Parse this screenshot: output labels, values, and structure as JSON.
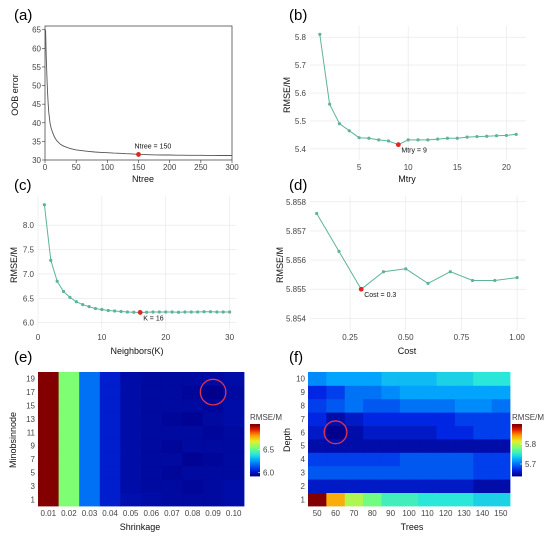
{
  "chart_data": [
    {
      "id": "a",
      "panel_label": "(a)",
      "type": "line",
      "xlabel": "Ntree",
      "ylabel": "OOB error",
      "xlim": [
        0,
        300
      ],
      "ylim": [
        30,
        66
      ],
      "xticks": [
        0,
        50,
        100,
        150,
        200,
        250,
        300
      ],
      "yticks": [
        30,
        35,
        40,
        45,
        50,
        55,
        60,
        65
      ],
      "series": [
        {
          "x": [
            1,
            2,
            3,
            4,
            5,
            6,
            8,
            10,
            12,
            15,
            18,
            20,
            25,
            30,
            35,
            40,
            50,
            60,
            70,
            80,
            90,
            100,
            110,
            120,
            130,
            140,
            150,
            160,
            170,
            180,
            190,
            200,
            210,
            220,
            230,
            240,
            250,
            260,
            270,
            280,
            290,
            300
          ],
          "y": [
            65,
            58,
            52.5,
            48.5,
            45.5,
            43,
            40,
            38.5,
            37.5,
            36.2,
            35.4,
            35,
            34.2,
            33.7,
            33.4,
            33.1,
            32.7,
            32.5,
            32.3,
            32.15,
            32.05,
            31.95,
            31.85,
            31.8,
            31.7,
            31.65,
            31.5,
            31.45,
            31.4,
            31.38,
            31.35,
            31.33,
            31.3,
            31.28,
            31.27,
            31.26,
            31.25,
            31.24,
            31.23,
            31.22,
            31.21,
            31.2
          ]
        }
      ],
      "highlight": {
        "x": 150,
        "y": 31.5,
        "label": "Ntree = 150"
      },
      "grid": false,
      "frame": true
    },
    {
      "id": "b",
      "panel_label": "(b)",
      "type": "line",
      "xlabel": "Mtry",
      "ylabel": "RMSE/M",
      "xlim": [
        0,
        22
      ],
      "ylim": [
        5.36,
        5.84
      ],
      "xticks": [
        5,
        10,
        15,
        20
      ],
      "yticks": [
        5.4,
        5.5,
        5.6,
        5.7,
        5.8
      ],
      "series": [
        {
          "x": [
            1,
            2,
            3,
            4,
            5,
            6,
            7,
            8,
            9,
            10,
            11,
            12,
            13,
            14,
            15,
            16,
            17,
            18,
            19,
            20,
            21
          ],
          "y": [
            5.81,
            5.56,
            5.49,
            5.465,
            5.44,
            5.438,
            5.432,
            5.428,
            5.415,
            5.432,
            5.432,
            5.432,
            5.435,
            5.438,
            5.438,
            5.442,
            5.444,
            5.445,
            5.447,
            5.448,
            5.452
          ]
        }
      ],
      "highlight": {
        "x": 9,
        "y": 5.415,
        "label": "Mtry = 9"
      },
      "grid": true,
      "frame": false
    },
    {
      "id": "c",
      "panel_label": "(c)",
      "type": "line",
      "xlabel": "Neighbors(K)",
      "ylabel": "RMSE/M",
      "xlim": [
        0,
        31
      ],
      "ylim": [
        5.85,
        8.6
      ],
      "xticks": [
        0,
        10,
        20,
        30
      ],
      "yticks": [
        6.0,
        6.5,
        7.0,
        7.5,
        8.0
      ],
      "series": [
        {
          "x": [
            1,
            2,
            3,
            4,
            5,
            6,
            7,
            8,
            9,
            10,
            11,
            12,
            13,
            14,
            15,
            16,
            17,
            18,
            19,
            20,
            21,
            22,
            23,
            24,
            25,
            26,
            27,
            28,
            29,
            30
          ],
          "y": [
            8.42,
            7.28,
            6.85,
            6.64,
            6.52,
            6.43,
            6.37,
            6.33,
            6.29,
            6.27,
            6.25,
            6.24,
            6.23,
            6.22,
            6.215,
            6.21,
            6.215,
            6.22,
            6.22,
            6.22,
            6.22,
            6.215,
            6.22,
            6.22,
            6.22,
            6.225,
            6.225,
            6.22,
            6.22,
            6.22
          ]
        }
      ],
      "highlight": {
        "x": 16,
        "y": 6.21,
        "label": "K = 16"
      },
      "grid": true,
      "frame": false
    },
    {
      "id": "d",
      "panel_label": "(d)",
      "type": "line",
      "xlabel": "Cost",
      "ylabel": "RMSE/M",
      "xlim": [
        0.07,
        1.04
      ],
      "ylim": [
        5.8536,
        5.8582
      ],
      "xticks": [
        0.25,
        0.5,
        0.75,
        1.0
      ],
      "xtick_labels": [
        "0.25",
        "0.50",
        "0.75",
        "1.00"
      ],
      "yticks": [
        5.854,
        5.855,
        5.856,
        5.857,
        5.858
      ],
      "series": [
        {
          "x": [
            0.1,
            0.2,
            0.3,
            0.4,
            0.5,
            0.6,
            0.7,
            0.8,
            0.9,
            1.0
          ],
          "y": [
            5.8576,
            5.8563,
            5.855,
            5.8556,
            5.8557,
            5.8552,
            5.8556,
            5.8553,
            5.8553,
            5.8554
          ]
        }
      ],
      "highlight": {
        "x": 0.3,
        "y": 5.855,
        "label": "Cost = 0.3"
      },
      "grid": true,
      "frame": false
    },
    {
      "id": "e",
      "panel_label": "(e)",
      "type": "heatmap",
      "xlabel": "Shrinkage",
      "ylabel": "Minobsinnode",
      "x_categories": [
        "0.01",
        "0.02",
        "0.03",
        "0.04",
        "0.05",
        "0.06",
        "0.07",
        "0.08",
        "0.09",
        "0.10"
      ],
      "y_categories": [
        "1",
        "3",
        "5",
        "7",
        "9",
        "11",
        "13",
        "15",
        "17",
        "19"
      ],
      "values": [
        [
          7.05,
          6.55,
          6.18,
          6.02,
          5.97,
          5.96,
          5.95,
          5.95,
          5.95,
          5.96
        ],
        [
          7.05,
          6.55,
          6.18,
          6.02,
          5.96,
          5.95,
          5.95,
          5.94,
          5.95,
          5.96
        ],
        [
          7.05,
          6.55,
          6.18,
          6.02,
          5.96,
          5.95,
          5.94,
          5.95,
          5.95,
          5.95
        ],
        [
          7.05,
          6.55,
          6.18,
          6.02,
          5.96,
          5.95,
          5.95,
          5.93,
          5.94,
          5.95
        ],
        [
          7.05,
          6.55,
          6.18,
          6.02,
          5.96,
          5.95,
          5.94,
          5.95,
          5.95,
          5.95
        ],
        [
          7.05,
          6.55,
          6.18,
          6.02,
          5.96,
          5.95,
          5.95,
          5.95,
          5.94,
          5.95
        ],
        [
          7.05,
          6.55,
          6.18,
          6.02,
          5.96,
          5.95,
          5.94,
          5.93,
          5.95,
          5.96
        ],
        [
          7.05,
          6.55,
          6.18,
          6.02,
          5.96,
          5.95,
          5.95,
          5.95,
          5.94,
          5.96
        ],
        [
          7.05,
          6.55,
          6.18,
          6.02,
          5.96,
          5.95,
          5.95,
          5.94,
          5.92,
          5.95
        ],
        [
          7.05,
          6.55,
          6.18,
          6.02,
          5.96,
          5.95,
          5.95,
          5.95,
          5.95,
          5.96
        ]
      ],
      "colorbar": {
        "title": "RMSE/M",
        "min": 5.92,
        "max": 7.05,
        "ticks": [
          6.0,
          6.5
        ]
      },
      "highlight_cell": {
        "x": "0.09",
        "y": "17"
      }
    },
    {
      "id": "f",
      "panel_label": "(f)",
      "type": "heatmap",
      "xlabel": "Trees",
      "ylabel": "Depth",
      "x_categories": [
        "50",
        "60",
        "70",
        "80",
        "90",
        "100",
        "110",
        "120",
        "130",
        "140",
        "150"
      ],
      "y_categories": [
        "1",
        "2",
        "3",
        "4",
        "5",
        "6",
        "7",
        "8",
        "9",
        "10"
      ],
      "values": [
        [
          5.9,
          5.84,
          5.8,
          5.78,
          5.76,
          5.76,
          5.75,
          5.75,
          5.75,
          5.74,
          5.74
        ],
        [
          5.66,
          5.66,
          5.66,
          5.66,
          5.66,
          5.66,
          5.66,
          5.66,
          5.66,
          5.65,
          5.65
        ],
        [
          5.69,
          5.69,
          5.69,
          5.69,
          5.69,
          5.69,
          5.69,
          5.69,
          5.69,
          5.68,
          5.68
        ],
        [
          5.68,
          5.68,
          5.68,
          5.68,
          5.68,
          5.69,
          5.69,
          5.69,
          5.69,
          5.68,
          5.68
        ],
        [
          5.65,
          5.65,
          5.65,
          5.65,
          5.65,
          5.65,
          5.65,
          5.65,
          5.65,
          5.65,
          5.65
        ],
        [
          5.66,
          5.64,
          5.65,
          5.66,
          5.66,
          5.66,
          5.66,
          5.67,
          5.67,
          5.68,
          5.68
        ],
        [
          5.67,
          5.65,
          5.66,
          5.67,
          5.67,
          5.67,
          5.67,
          5.67,
          5.68,
          5.68,
          5.68
        ],
        [
          5.68,
          5.69,
          5.7,
          5.69,
          5.69,
          5.7,
          5.7,
          5.7,
          5.71,
          5.71,
          5.7
        ],
        [
          5.67,
          5.68,
          5.7,
          5.7,
          5.71,
          5.72,
          5.72,
          5.72,
          5.72,
          5.72,
          5.72
        ],
        [
          5.71,
          5.72,
          5.72,
          5.72,
          5.73,
          5.73,
          5.73,
          5.74,
          5.74,
          5.75,
          5.75
        ]
      ],
      "colorbar": {
        "title": "RMSE/M",
        "min": 5.64,
        "max": 5.9,
        "ticks": [
          5.7,
          5.8
        ]
      },
      "highlight_cell": {
        "x": "60",
        "y": "6"
      }
    }
  ],
  "colors": {
    "line_a": "#555555",
    "line": "#5fb39a",
    "highlight": "#e0271f",
    "circle": "#e0344f",
    "grid": "#e6e6e6"
  }
}
